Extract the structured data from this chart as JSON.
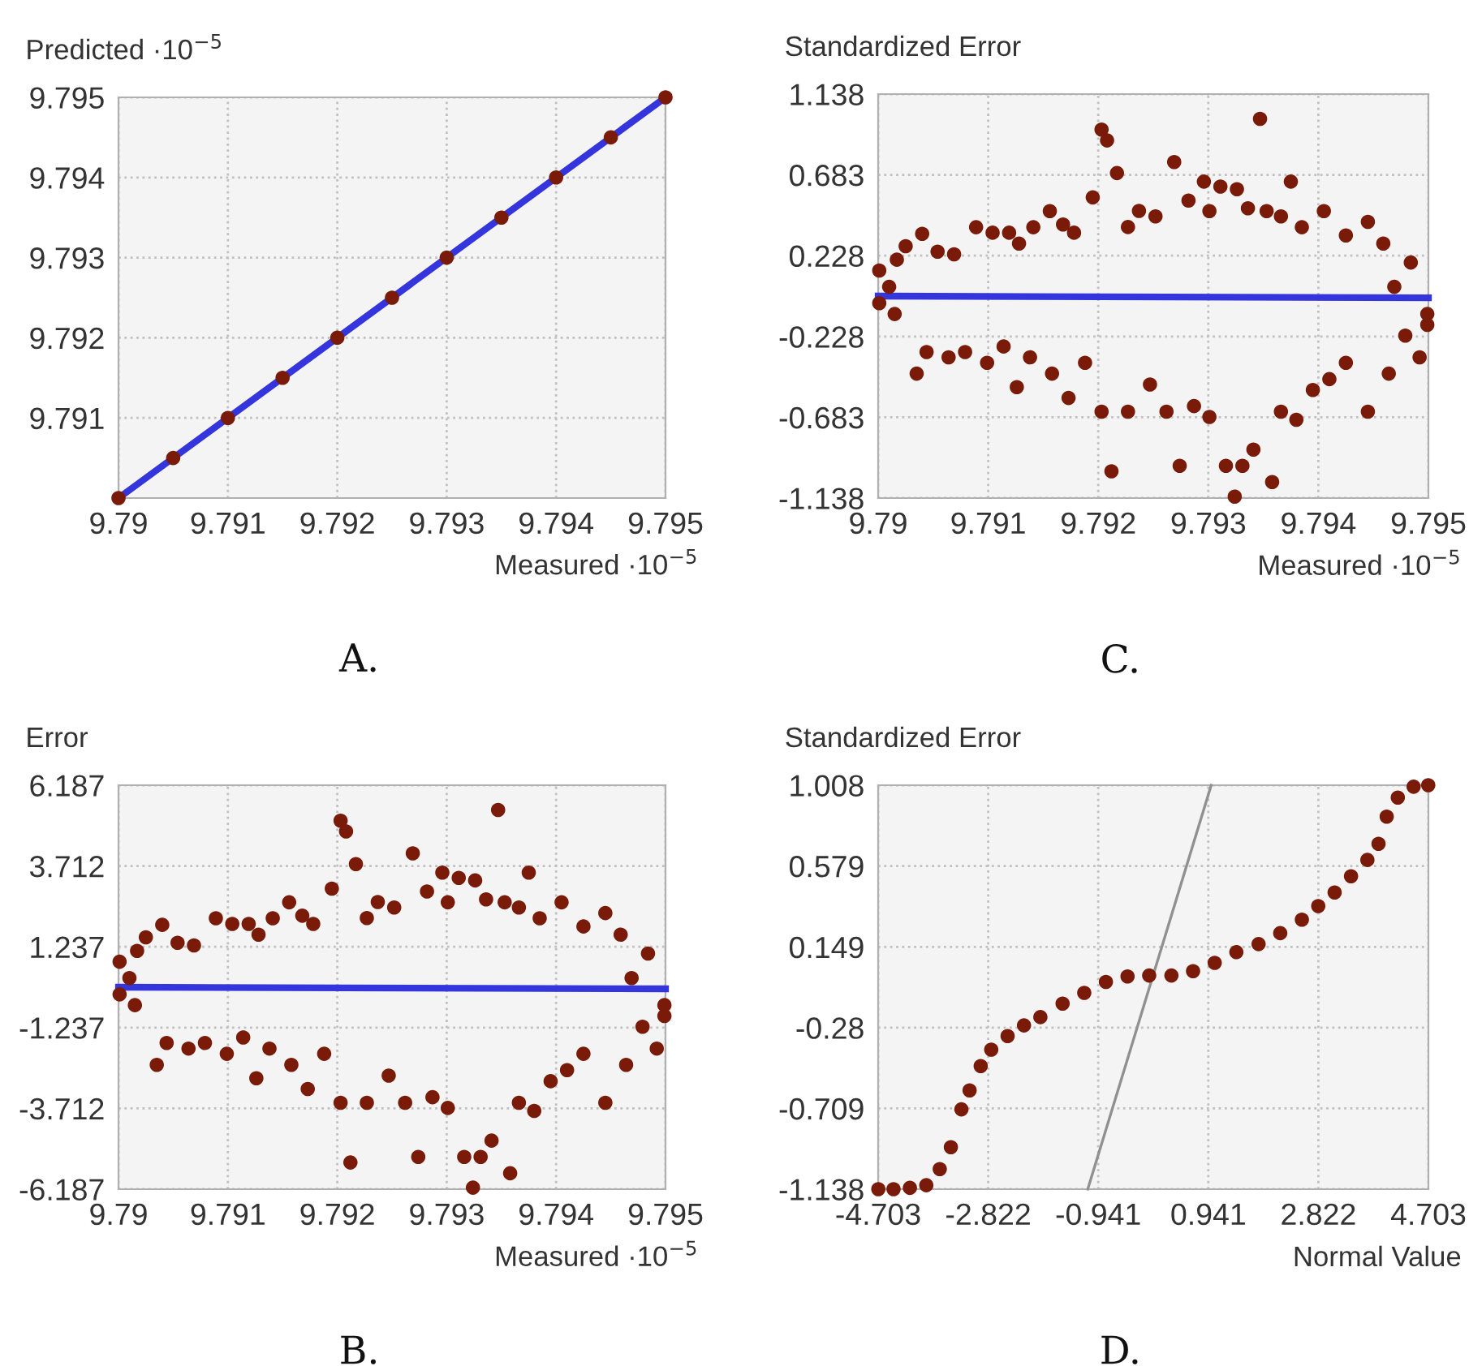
{
  "chart_data": [
    {
      "type": "scatter",
      "xlabel": "Measured ·10$^{−5}$",
      "ylabel": "Predicted ·10$^{−5}$",
      "xlim": [
        9.79,
        9.795
      ],
      "ylim": [
        9.79,
        9.795
      ],
      "xticks": [
        9.79,
        9.791,
        9.792,
        9.793,
        9.794,
        9.795
      ],
      "yticks": [
        9.791,
        9.792,
        9.793,
        9.794,
        9.795
      ],
      "grid": true,
      "annotations": [
        "A."
      ],
      "series": [
        {
          "type": "scatter",
          "marker": "circle",
          "color": "#7a1a08",
          "x": [
            9.79,
            9.7905,
            9.791,
            9.7915,
            9.792,
            9.7925,
            9.793,
            9.7935,
            9.794,
            9.7945,
            9.795
          ],
          "values": [
            9.79,
            9.7905,
            9.791,
            9.7915,
            9.792,
            9.7925,
            9.793,
            9.7935,
            9.794,
            9.7945,
            9.795
          ]
        },
        {
          "type": "line",
          "marker": "none",
          "color": "#3535dd",
          "x": [
            9.79,
            9.795
          ],
          "values": [
            9.79,
            9.795
          ]
        }
      ]
    },
    {
      "type": "scatter",
      "xlabel": "Measured ·10$^{−5}$",
      "ylabel": "Standardized Error",
      "xlim": [
        9.79,
        9.795
      ],
      "ylim": [
        -1.138,
        1.138
      ],
      "xticks": [
        9.79,
        9.791,
        9.792,
        9.793,
        9.794,
        9.795
      ],
      "yticks": [
        1.138,
        0.683,
        0.228,
        -0.228,
        -0.683,
        -1.138
      ],
      "grid": true,
      "annotations": [
        "C."
      ],
      "series": [
        {
          "type": "scatter",
          "marker": "circle",
          "color": "#7a1a08",
          "x": [
            9.79001,
            9.7901,
            9.79017,
            9.79025,
            9.7904,
            9.79054,
            9.79069,
            9.79089,
            9.79104,
            9.79119,
            9.79128,
            9.79141,
            9.79156,
            9.79168,
            9.79178,
            9.79195,
            9.79203,
            9.79208,
            9.79217,
            9.79227,
            9.79237,
            9.79252,
            9.79269,
            9.79282,
            9.79296,
            9.79301,
            9.79311,
            9.79326,
            9.79336,
            9.79347,
            9.79353,
            9.79366,
            9.79375,
            9.79385,
            9.79405,
            9.79425,
            9.79445,
            9.79459,
            9.79469,
            9.79484,
            9.79499,
            9.79001,
            9.79015,
            9.79035,
            9.79044,
            9.79064,
            9.79079,
            9.79099,
            9.79114,
            9.79126,
            9.79138,
            9.79158,
            9.79173,
            9.79188,
            9.79203,
            9.79212,
            9.79227,
            9.79247,
            9.79262,
            9.79274,
            9.79287,
            9.79301,
            9.79316,
            9.79324,
            9.79331,
            9.79341,
            9.79358,
            9.79366,
            9.7938,
            9.79395,
            9.7941,
            9.79425,
            9.79445,
            9.79464,
            9.79479,
            9.79492,
            9.79499
          ],
          "values": [
            0.144,
            0.052,
            0.205,
            0.281,
            0.351,
            0.25,
            0.235,
            0.388,
            0.357,
            0.357,
            0.296,
            0.388,
            0.479,
            0.403,
            0.357,
            0.556,
            0.938,
            0.877,
            0.693,
            0.389,
            0.48,
            0.449,
            0.755,
            0.538,
            0.645,
            0.479,
            0.617,
            0.602,
            0.495,
            0.999,
            0.479,
            0.449,
            0.645,
            0.388,
            0.479,
            0.342,
            0.418,
            0.296,
            0.052,
            0.189,
            -0.101,
            -0.04,
            -0.101,
            -0.437,
            -0.315,
            -0.345,
            -0.315,
            -0.376,
            -0.284,
            -0.513,
            -0.345,
            -0.437,
            -0.574,
            -0.376,
            -0.651,
            -0.987,
            -0.651,
            -0.498,
            -0.651,
            -0.956,
            -0.62,
            -0.681,
            -0.956,
            -1.13,
            -0.956,
            -0.865,
            -1.048,
            -0.651,
            -0.697,
            -0.529,
            -0.468,
            -0.376,
            -0.651,
            -0.437,
            -0.223,
            -0.345,
            -0.162
          ]
        },
        {
          "type": "line",
          "marker": "none",
          "color": "#3535dd",
          "x": [
            9.79,
            9.795
          ],
          "values": [
            0.0,
            -0.01
          ]
        }
      ]
    },
    {
      "type": "scatter",
      "xlabel": "Measured ·10$^{−5}$",
      "ylabel": "Error",
      "xlim": [
        9.79,
        9.795
      ],
      "ylim": [
        -6.187,
        6.187
      ],
      "xticks": [
        9.79,
        9.791,
        9.792,
        9.793,
        9.794,
        9.795
      ],
      "yticks": [
        6.187,
        3.712,
        1.237,
        -1.237,
        -3.712,
        -6.187
      ],
      "grid": true,
      "annotations": [
        "B."
      ],
      "series": [
        {
          "type": "scatter",
          "marker": "circle",
          "color": "#7a1a08",
          "x": [
            9.79001,
            9.7901,
            9.79017,
            9.79025,
            9.7904,
            9.79054,
            9.79069,
            9.79089,
            9.79104,
            9.79119,
            9.79128,
            9.79141,
            9.79156,
            9.79168,
            9.79178,
            9.79195,
            9.79203,
            9.79208,
            9.79217,
            9.79227,
            9.79237,
            9.79252,
            9.79269,
            9.79282,
            9.79296,
            9.79301,
            9.79311,
            9.79326,
            9.79336,
            9.79347,
            9.79353,
            9.79366,
            9.79375,
            9.79385,
            9.79405,
            9.79425,
            9.79445,
            9.79459,
            9.79469,
            9.79484,
            9.79499,
            9.79001,
            9.79015,
            9.79035,
            9.79044,
            9.79064,
            9.79079,
            9.79099,
            9.79114,
            9.79126,
            9.79138,
            9.79158,
            9.79173,
            9.79188,
            9.79203,
            9.79212,
            9.79227,
            9.79247,
            9.79262,
            9.79274,
            9.79287,
            9.79301,
            9.79316,
            9.79324,
            9.79331,
            9.79341,
            9.79358,
            9.79366,
            9.7938,
            9.79395,
            9.7941,
            9.79425,
            9.79445,
            9.79464,
            9.79479,
            9.79492,
            9.79499
          ],
          "values": [
            0.78,
            0.28,
            1.11,
            1.53,
            1.91,
            1.36,
            1.28,
            2.11,
            1.94,
            1.94,
            1.61,
            2.11,
            2.6,
            2.19,
            1.94,
            3.02,
            5.1,
            4.77,
            3.77,
            2.12,
            2.61,
            2.44,
            4.1,
            2.93,
            3.51,
            2.6,
            3.35,
            3.27,
            2.69,
            5.43,
            2.6,
            2.44,
            3.51,
            2.11,
            2.6,
            1.86,
            2.27,
            1.61,
            0.28,
            1.03,
            -0.55,
            -0.22,
            -0.55,
            -2.38,
            -1.71,
            -1.88,
            -1.71,
            -2.04,
            -1.54,
            -2.79,
            -1.88,
            -2.38,
            -3.12,
            -2.04,
            -3.54,
            -5.37,
            -3.54,
            -2.71,
            -3.54,
            -5.2,
            -3.37,
            -3.7,
            -5.2,
            -6.14,
            -5.2,
            -4.7,
            -5.7,
            -3.54,
            -3.79,
            -2.88,
            -2.54,
            -2.04,
            -3.54,
            -2.38,
            -1.21,
            -1.88,
            -0.88
          ]
        },
        {
          "type": "line",
          "marker": "none",
          "color": "#3535dd",
          "x": [
            9.79,
            9.795
          ],
          "values": [
            0.0,
            -0.05
          ]
        }
      ]
    },
    {
      "type": "scatter",
      "xlabel": "Normal Value",
      "ylabel": "Standardized Error",
      "xlim": [
        -4.703,
        4.703
      ],
      "ylim": [
        -1.138,
        1.008
      ],
      "xticks": [
        -4.703,
        -2.822,
        -0.941,
        0.941,
        2.822,
        4.703
      ],
      "yticks": [
        1.008,
        0.579,
        0.149,
        -0.28,
        -0.709,
        -1.138
      ],
      "grid": true,
      "annotations": [
        "D."
      ],
      "series": [
        {
          "type": "scatter",
          "marker": "circle",
          "color": "#7a1a08",
          "x": [
            -4.7,
            -4.44,
            -4.16,
            -3.88,
            -3.65,
            -3.46,
            -3.28,
            -3.14,
            -2.95,
            -2.77,
            -2.49,
            -2.21,
            -1.93,
            -1.55,
            -1.18,
            -0.81,
            -0.44,
            -0.07,
            0.31,
            0.68,
            1.05,
            1.42,
            1.8,
            2.17,
            2.54,
            2.82,
            3.1,
            3.38,
            3.66,
            3.85,
            3.99,
            4.18,
            4.45,
            4.7
          ],
          "values": [
            -1.138,
            -1.138,
            -1.131,
            -1.117,
            -1.031,
            -0.915,
            -0.714,
            -0.613,
            -0.484,
            -0.397,
            -0.325,
            -0.268,
            -0.224,
            -0.152,
            -0.095,
            -0.037,
            -0.008,
            -0.003,
            -0.003,
            0.02,
            0.064,
            0.121,
            0.164,
            0.222,
            0.294,
            0.366,
            0.438,
            0.524,
            0.611,
            0.697,
            0.841,
            0.942,
            1.0,
            1.008
          ]
        },
        {
          "type": "line",
          "marker": "none",
          "color": "#909090",
          "x": [
            -1.12,
            0.99
          ],
          "values": [
            -1.138,
            1.008
          ]
        }
      ]
    }
  ]
}
